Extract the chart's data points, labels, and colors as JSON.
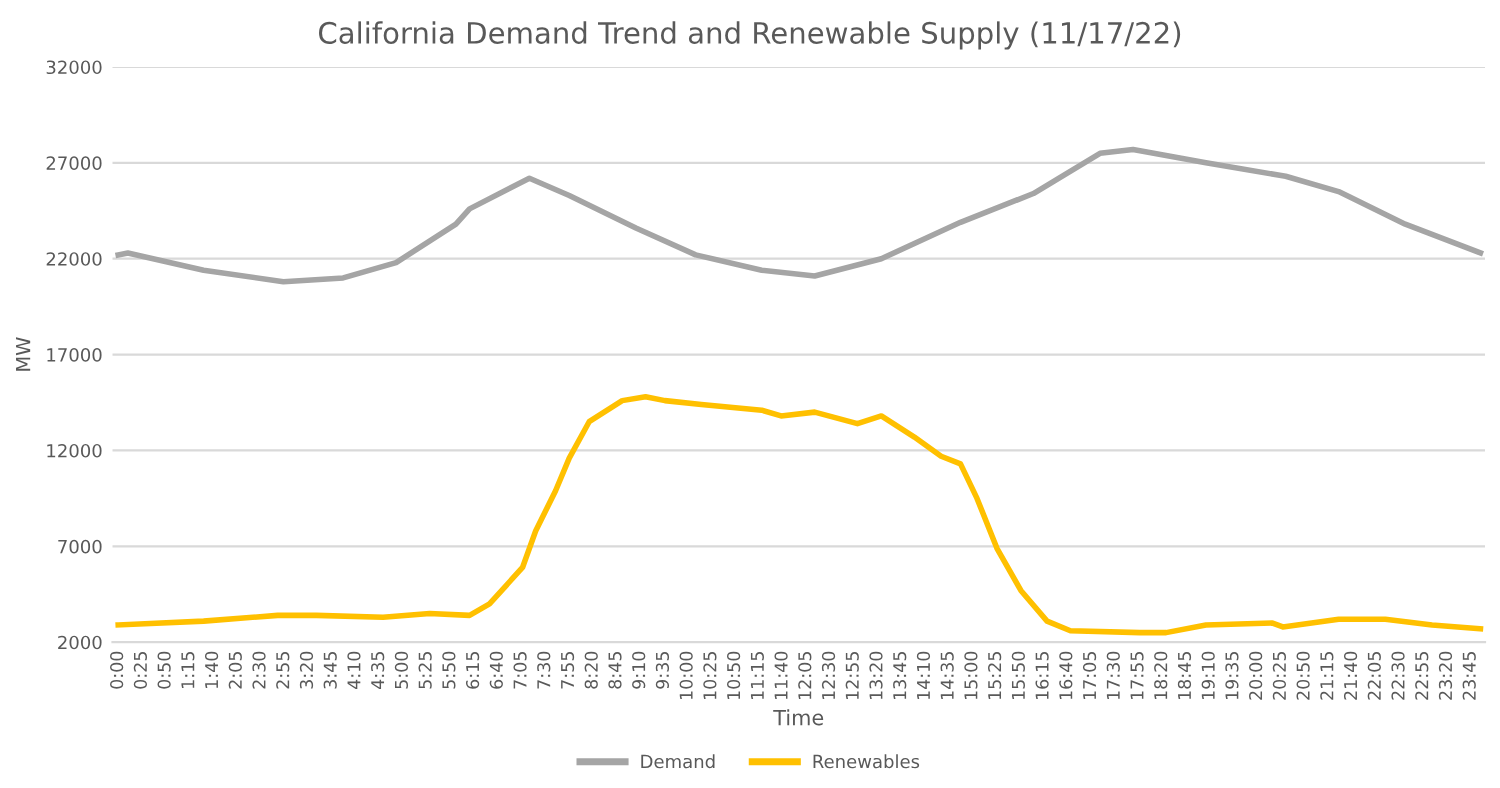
{
  "chart_data": {
    "type": "line",
    "title": "California Demand Trend and Renewable Supply (11/17/22)",
    "xlabel": "Time",
    "ylabel": "MW",
    "series": [
      {
        "name": "Demand",
        "color": "#a5a5a5",
        "x": [
          0,
          0.17,
          1.5,
          2.9,
          3.95,
          4.88,
          5.93,
          6.17,
          7.22,
          7.92,
          9.09,
          10.14,
          11.3,
          12.23,
          13.4,
          14.79,
          16.07,
          17.24,
          17.82,
          19.1,
          20.5,
          21.43,
          22.6,
          23.92
        ],
        "values": [
          22200,
          22300,
          21400,
          20800,
          21000,
          21800,
          23800,
          24600,
          26200,
          25300,
          23600,
          22200,
          21400,
          21100,
          22000,
          23900,
          25400,
          27500,
          27700,
          27000,
          26300,
          25500,
          23800,
          22300
        ]
      },
      {
        "name": "Renewables",
        "color": "#ffc000",
        "x": [
          0,
          1.5,
          2.8,
          3.48,
          4.65,
          5.47,
          6.17,
          6.52,
          7.1,
          7.33,
          7.68,
          7.92,
          8.27,
          8.85,
          9.26,
          9.6,
          10.24,
          11.3,
          11.64,
          12.23,
          12.98,
          13.4,
          13.98,
          14.45,
          14.79,
          15.08,
          15.43,
          15.85,
          16.31,
          16.72,
          17.94,
          18.4,
          19.1,
          20.27,
          20.45,
          21.43,
          22.25,
          23.07,
          23.92
        ],
        "values": [
          2900,
          3100,
          3400,
          3400,
          3300,
          3500,
          3400,
          4000,
          5900,
          7800,
          9900,
          11600,
          13500,
          14600,
          14800,
          14600,
          14400,
          14100,
          13800,
          14000,
          13400,
          13800,
          12700,
          11700,
          11300,
          9500,
          6900,
          4700,
          3100,
          2600,
          2500,
          2500,
          2900,
          3000,
          2800,
          3200,
          3200,
          2900,
          2700
        ]
      }
    ],
    "xlim": [
      -0.1,
      24.0
    ],
    "ylim": [
      2000,
      32000
    ],
    "yticks": [
      2000,
      7000,
      12000,
      17000,
      22000,
      27000,
      32000
    ],
    "xticks": [
      {
        "value": 0,
        "label": "0:00"
      },
      {
        "value": 0.4167,
        "label": "0:25"
      },
      {
        "value": 0.8333,
        "label": "0:50"
      },
      {
        "value": 1.25,
        "label": "1:15"
      },
      {
        "value": 1.6667,
        "label": "1:40"
      },
      {
        "value": 2.0833,
        "label": "2:05"
      },
      {
        "value": 2.5,
        "label": "2:30"
      },
      {
        "value": 2.9167,
        "label": "2:55"
      },
      {
        "value": 3.3333,
        "label": "3:20"
      },
      {
        "value": 3.75,
        "label": "3:45"
      },
      {
        "value": 4.1667,
        "label": "4:10"
      },
      {
        "value": 4.5833,
        "label": "4:35"
      },
      {
        "value": 5,
        "label": "5:00"
      },
      {
        "value": 5.4167,
        "label": "5:25"
      },
      {
        "value": 5.8333,
        "label": "5:50"
      },
      {
        "value": 6.25,
        "label": "6:15"
      },
      {
        "value": 6.6667,
        "label": "6:40"
      },
      {
        "value": 7.0833,
        "label": "7:05"
      },
      {
        "value": 7.5,
        "label": "7:30"
      },
      {
        "value": 7.9167,
        "label": "7:55"
      },
      {
        "value": 8.3333,
        "label": "8:20"
      },
      {
        "value": 8.75,
        "label": "8:45"
      },
      {
        "value": 9.1667,
        "label": "9:10"
      },
      {
        "value": 9.5833,
        "label": "9:35"
      },
      {
        "value": 10,
        "label": "10:00"
      },
      {
        "value": 10.4167,
        "label": "10:25"
      },
      {
        "value": 10.8333,
        "label": "10:50"
      },
      {
        "value": 11.25,
        "label": "11:15"
      },
      {
        "value": 11.6667,
        "label": "11:40"
      },
      {
        "value": 12.0833,
        "label": "12:05"
      },
      {
        "value": 12.5,
        "label": "12:30"
      },
      {
        "value": 12.9167,
        "label": "12:55"
      },
      {
        "value": 13.3333,
        "label": "13:20"
      },
      {
        "value": 13.75,
        "label": "13:45"
      },
      {
        "value": 14.1667,
        "label": "14:10"
      },
      {
        "value": 14.5833,
        "label": "14:35"
      },
      {
        "value": 15,
        "label": "15:00"
      },
      {
        "value": 15.4167,
        "label": "15:25"
      },
      {
        "value": 15.8333,
        "label": "15:50"
      },
      {
        "value": 16.25,
        "label": "16:15"
      },
      {
        "value": 16.6667,
        "label": "16:40"
      },
      {
        "value": 17.0833,
        "label": "17:05"
      },
      {
        "value": 17.5,
        "label": "17:30"
      },
      {
        "value": 17.9167,
        "label": "17:55"
      },
      {
        "value": 18.3333,
        "label": "18:20"
      },
      {
        "value": 18.75,
        "label": "18:45"
      },
      {
        "value": 19.1667,
        "label": "19:10"
      },
      {
        "value": 19.5833,
        "label": "19:35"
      },
      {
        "value": 20,
        "label": "20:00"
      },
      {
        "value": 20.4167,
        "label": "20:25"
      },
      {
        "value": 20.8333,
        "label": "20:50"
      },
      {
        "value": 21.25,
        "label": "21:15"
      },
      {
        "value": 21.6667,
        "label": "21:40"
      },
      {
        "value": 22.0833,
        "label": "22:05"
      },
      {
        "value": 22.5,
        "label": "22:30"
      },
      {
        "value": 22.9167,
        "label": "22:55"
      },
      {
        "value": 23.3333,
        "label": "23:20"
      },
      {
        "value": 23.75,
        "label": "23:45"
      }
    ],
    "grid": "y",
    "legend": "bottom",
    "marker": "none",
    "line_style": "solid"
  }
}
